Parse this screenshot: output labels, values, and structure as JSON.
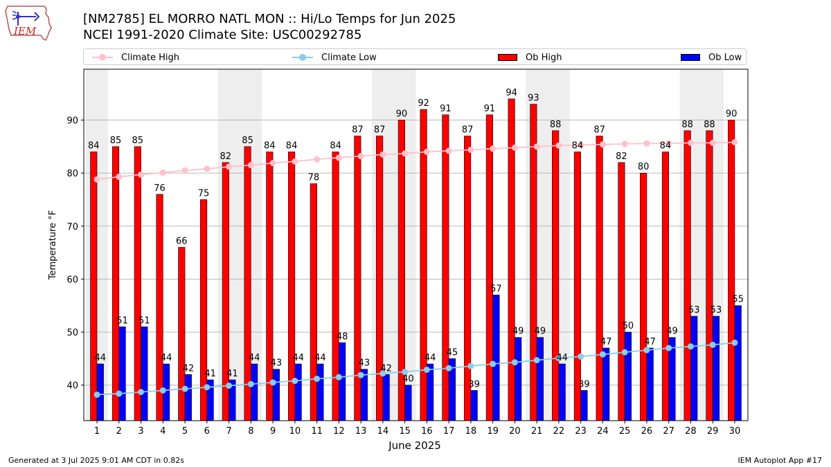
{
  "header": {
    "title_line1": "[NM2785] EL MORRO NATL MON :: Hi/Lo Temps for Jun 2025",
    "title_line2": "NCEI 1991-2020 Climate Site: USC00292785"
  },
  "logo": {
    "text": "IEM"
  },
  "legend": {
    "climate_high": "Climate High",
    "climate_low": "Climate Low",
    "ob_high": "Ob High",
    "ob_low": "Ob Low"
  },
  "colors": {
    "ob_high": "#ff0000",
    "ob_low": "#0000ff",
    "climate_high": "#ffc0cb",
    "climate_low": "#87ceeb",
    "weekend_band": "#eeeeee",
    "grid": "#b0b0b0"
  },
  "chart_data": {
    "type": "bar",
    "xlabel": "June 2025",
    "ylabel": "Temperature °F",
    "ylim": [
      33.3,
      99.6
    ],
    "yticks": [
      40,
      50,
      60,
      70,
      80,
      90
    ],
    "grid": "horizontal",
    "legend_position": "top",
    "categories": [
      "1",
      "2",
      "3",
      "4",
      "5",
      "6",
      "7",
      "8",
      "9",
      "10",
      "11",
      "12",
      "13",
      "14",
      "15",
      "16",
      "17",
      "18",
      "19",
      "20",
      "21",
      "22",
      "23",
      "24",
      "25",
      "26",
      "27",
      "28",
      "29",
      "30"
    ],
    "shaded_days": [
      "1",
      "7",
      "8",
      "14",
      "15",
      "21",
      "22",
      "28",
      "29"
    ],
    "series": [
      {
        "name": "Ob High",
        "kind": "bar",
        "labeled": true,
        "values": [
          84,
          85,
          85,
          76,
          66,
          75,
          82,
          85,
          84,
          84,
          78,
          84,
          87,
          87,
          90,
          92,
          91,
          87,
          91,
          94,
          93,
          88,
          84,
          87,
          82,
          80,
          84,
          88,
          88,
          90
        ]
      },
      {
        "name": "Ob Low",
        "kind": "bar",
        "labeled": true,
        "values": [
          44,
          51,
          51,
          44,
          42,
          41,
          41,
          44,
          43,
          44,
          44,
          48,
          43,
          42,
          40,
          44,
          45,
          39,
          57,
          49,
          49,
          44,
          39,
          47,
          50,
          47,
          49,
          53,
          53,
          55
        ]
      },
      {
        "name": "Climate High",
        "kind": "line",
        "values": [
          78.8,
          79.3,
          79.7,
          80.1,
          80.5,
          80.8,
          81.2,
          81.5,
          81.9,
          82.2,
          82.6,
          82.9,
          83.2,
          83.5,
          83.7,
          84.0,
          84.2,
          84.4,
          84.6,
          84.8,
          85.0,
          85.2,
          85.3,
          85.4,
          85.5,
          85.6,
          85.6,
          85.7,
          85.7,
          85.8
        ]
      },
      {
        "name": "Climate Low",
        "kind": "line",
        "values": [
          38.2,
          38.4,
          38.7,
          39.0,
          39.3,
          39.6,
          39.9,
          40.2,
          40.5,
          40.8,
          41.2,
          41.5,
          41.9,
          42.2,
          42.5,
          42.9,
          43.2,
          43.6,
          44.0,
          44.3,
          44.7,
          45.1,
          45.4,
          45.8,
          46.2,
          46.6,
          47.0,
          47.3,
          47.6,
          48.0
        ]
      }
    ]
  },
  "footer": {
    "generated": "Generated at 3 Jul 2025 9:01 AM CDT in 0.82s",
    "app": "IEM Autoplot App #17"
  }
}
